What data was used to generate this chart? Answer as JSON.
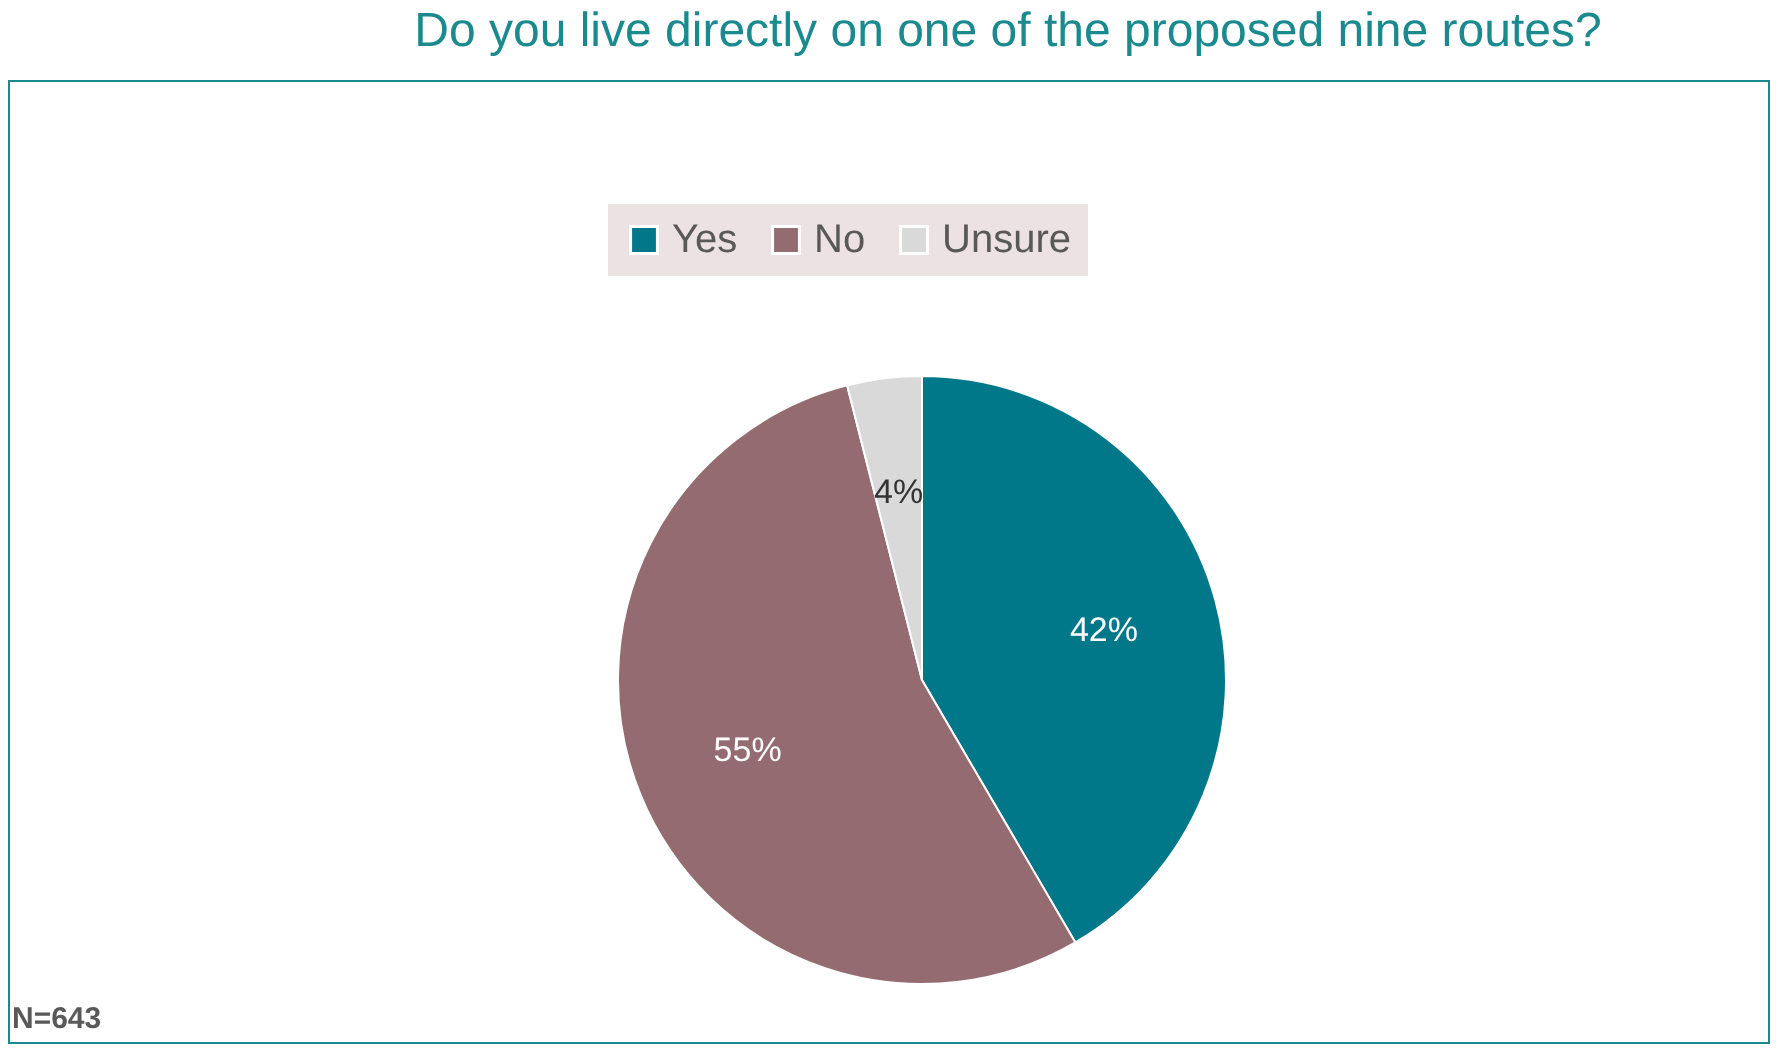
{
  "chart_data": {
    "type": "pie",
    "title": "Do you live directly on one of the proposed nine routes?",
    "categories": [
      "Yes",
      "No",
      "Unsure"
    ],
    "values": [
      42,
      55,
      4
    ],
    "colors": [
      "#00788a",
      "#946b70",
      "#d9d9d9"
    ],
    "value_labels": [
      "42%",
      "55%",
      "4%"
    ],
    "legend": "top",
    "annotations": [
      "N=643"
    ]
  }
}
